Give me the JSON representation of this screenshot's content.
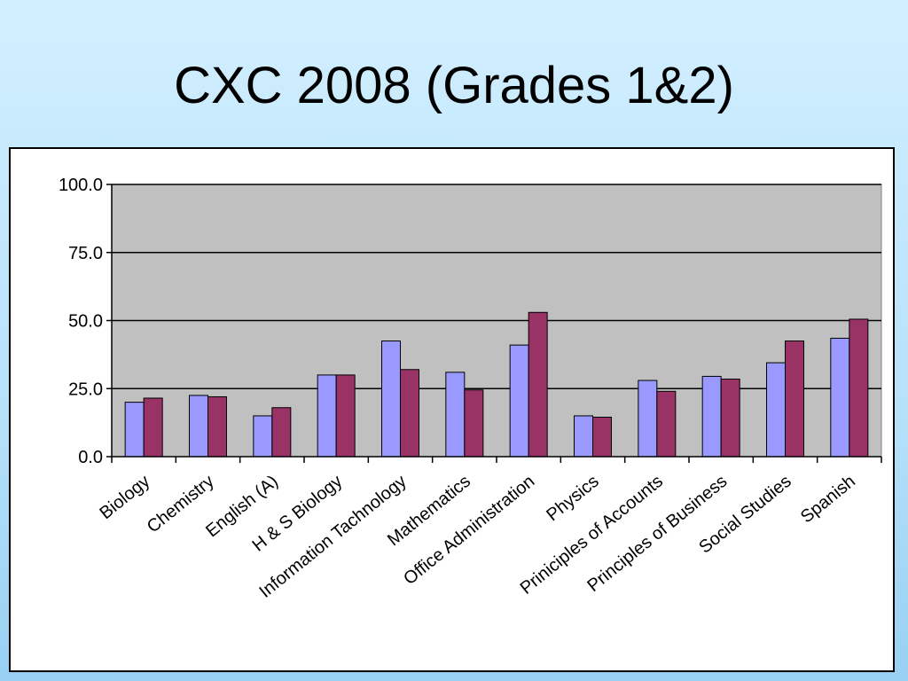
{
  "slide": {
    "title": "CXC 2008 (Grades 1&2)"
  },
  "colors": {
    "plot_background": "#c0c0c0",
    "series_1": "#9999ff",
    "series_2": "#993366"
  },
  "chart_data": {
    "type": "bar",
    "title": "CXC 2008 (Grades 1&2)",
    "xlabel": "",
    "ylabel": "",
    "ylim": [
      0,
      100
    ],
    "yticks": [
      "0.0",
      "25.0",
      "50.0",
      "75.0",
      "100.0"
    ],
    "grid": true,
    "legend": "none",
    "categories": [
      "Biology",
      "Chemistry",
      "English (A)",
      "H & S Biology",
      "Information Tachnology",
      "Mathematics",
      "Office Administration",
      "Physics",
      "Priniciples of Accounts",
      "Principles of Business",
      "Social Studies",
      "Spanish"
    ],
    "series": [
      {
        "values": [
          20,
          22.5,
          15,
          30,
          42.5,
          31,
          41,
          15,
          28,
          29.5,
          34.5,
          43.5
        ]
      },
      {
        "values": [
          21.5,
          22,
          18,
          30,
          32,
          24.5,
          53,
          14.5,
          24,
          28.5,
          42.5,
          50.5
        ]
      }
    ]
  }
}
